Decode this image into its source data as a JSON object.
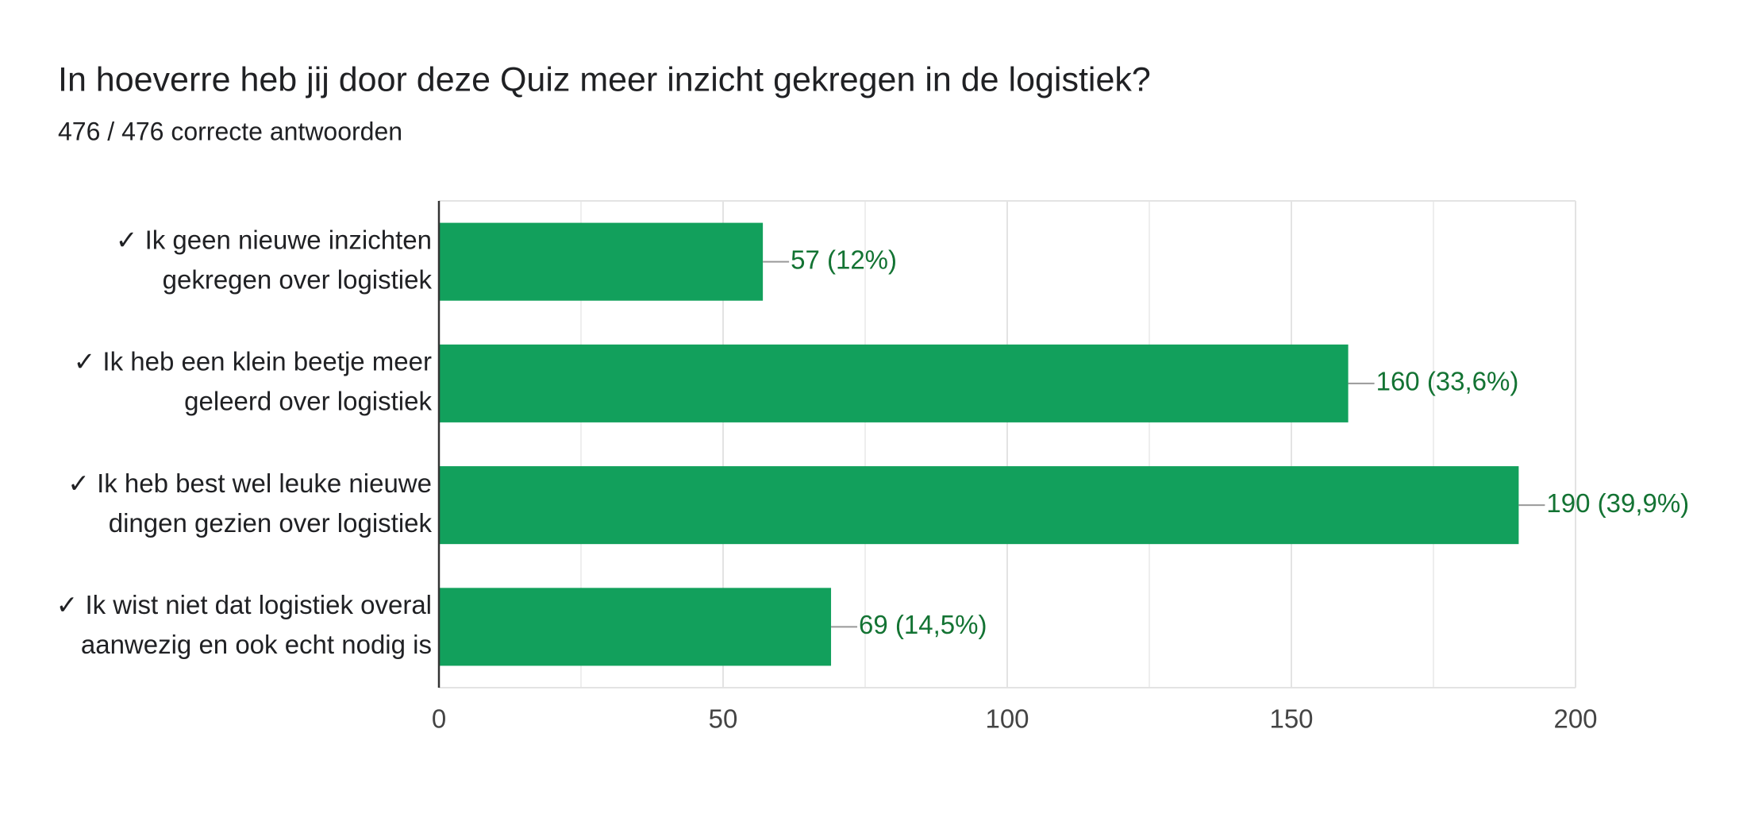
{
  "chart_data": {
    "type": "hbar",
    "title": "In hoeverre heb jij door deze Quiz meer inzicht gekregen in de logistiek?",
    "subtitle": "476 / 476 correcte antwoorden",
    "categories": [
      [
        "✓ Ik geen nieuwe inzichten",
        "gekregen over logistiek"
      ],
      [
        "✓ Ik heb een klein beetje meer",
        "geleerd over logistiek"
      ],
      [
        "✓ Ik heb best wel leuke nieuwe",
        "dingen gezien over logistiek"
      ],
      [
        "✓ Ik wist niet dat logistiek overal",
        "aanwezig en ook echt nodig is"
      ]
    ],
    "values": [
      57,
      160,
      190,
      69
    ],
    "value_labels": [
      "57 (12%)",
      "160 (33,6%)",
      "190 (39,9%)",
      "69 (14,5%)"
    ],
    "color": "#12a05c",
    "label_color": "#137333",
    "xlim": [
      0,
      200
    ],
    "xticks": [
      0,
      50,
      100,
      150,
      200
    ],
    "x_minor_ticks": [
      25,
      75,
      125,
      175
    ],
    "grid": true
  }
}
